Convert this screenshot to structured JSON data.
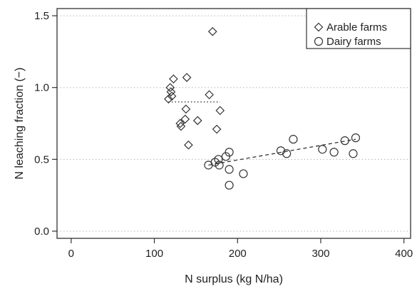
{
  "chart_data": {
    "type": "scatter",
    "xlabel": "N surplus (kg N/ha)",
    "ylabel": "N leaching fraction (−)",
    "xlim": [
      -17,
      408
    ],
    "ylim": [
      -0.05,
      1.55
    ],
    "x_ticks": [
      0,
      100,
      200,
      300,
      400
    ],
    "x_tick_labels": [
      "0",
      "100",
      "200",
      "300",
      "400"
    ],
    "y_ticks": [
      0.0,
      0.5,
      1.0,
      1.5
    ],
    "y_tick_labels": [
      "0.0",
      "0.5",
      "1.0",
      "1.5"
    ],
    "grid": "horizontal dotted at y ticks",
    "legend_position": "top-right",
    "series": [
      {
        "name": "Arable farms",
        "marker": "diamond",
        "color": "#333333",
        "points": [
          {
            "x": 170,
            "y": 1.39
          },
          {
            "x": 123,
            "y": 1.06
          },
          {
            "x": 139,
            "y": 1.07
          },
          {
            "x": 119,
            "y": 1.0
          },
          {
            "x": 120,
            "y": 0.97
          },
          {
            "x": 121,
            "y": 0.94
          },
          {
            "x": 117,
            "y": 0.92
          },
          {
            "x": 166,
            "y": 0.95
          },
          {
            "x": 138,
            "y": 0.85
          },
          {
            "x": 179,
            "y": 0.84
          },
          {
            "x": 137,
            "y": 0.78
          },
          {
            "x": 152,
            "y": 0.77
          },
          {
            "x": 131,
            "y": 0.75
          },
          {
            "x": 132,
            "y": 0.73
          },
          {
            "x": 175,
            "y": 0.71
          },
          {
            "x": 141,
            "y": 0.6
          }
        ],
        "trend": {
          "style": "dotted",
          "x": [
            117,
            179
          ],
          "y": [
            0.9,
            0.9
          ]
        }
      },
      {
        "name": "Dairy farms",
        "marker": "circle",
        "color": "#333333",
        "points": [
          {
            "x": 165,
            "y": 0.46
          },
          {
            "x": 173,
            "y": 0.48
          },
          {
            "x": 177,
            "y": 0.5
          },
          {
            "x": 178,
            "y": 0.46
          },
          {
            "x": 186,
            "y": 0.52
          },
          {
            "x": 190,
            "y": 0.55
          },
          {
            "x": 190,
            "y": 0.43
          },
          {
            "x": 190,
            "y": 0.32
          },
          {
            "x": 207,
            "y": 0.4
          },
          {
            "x": 252,
            "y": 0.56
          },
          {
            "x": 259,
            "y": 0.54
          },
          {
            "x": 267,
            "y": 0.64
          },
          {
            "x": 302,
            "y": 0.57
          },
          {
            "x": 316,
            "y": 0.55
          },
          {
            "x": 329,
            "y": 0.63
          },
          {
            "x": 339,
            "y": 0.54
          },
          {
            "x": 342,
            "y": 0.65
          }
        ],
        "trend": {
          "style": "dashed",
          "x": [
            165,
            342
          ],
          "y": [
            0.46,
            0.64
          ]
        }
      }
    ]
  }
}
